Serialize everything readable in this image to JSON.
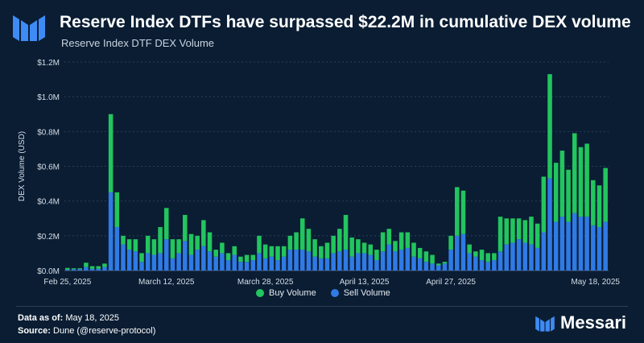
{
  "header": {
    "title": "Reserve Index DTFs have surpassed $22.2M in cumulative DEX volume",
    "subtitle": "Reserve Index DTF DEX Volume"
  },
  "footer": {
    "data_as_of_label": "Data as of:",
    "data_as_of_value": "May 18, 2025",
    "source_label": "Source:",
    "source_value": "Dune (@reserve-protocol)",
    "brand": "Messari"
  },
  "colors": {
    "buy": "#22c55e",
    "sell": "#2f7ae5",
    "background": "#0a1d33",
    "grid": "#2a3f58"
  },
  "chart_data": {
    "type": "bar",
    "stacked": true,
    "ylabel": "DEX Volume (USD)",
    "ylim": [
      0,
      1200000
    ],
    "y_ticks": [
      0,
      200000,
      400000,
      600000,
      800000,
      1000000,
      1200000
    ],
    "y_tick_labels": [
      "$0.0M",
      "$0.2M",
      "$0.4M",
      "$0.6M",
      "$0.8M",
      "$1.0M",
      "$1.2M"
    ],
    "x_tick_labels": [
      {
        "index": 0,
        "label": "Feb 25, 2025"
      },
      {
        "index": 16,
        "label": "March 12, 2025"
      },
      {
        "index": 32,
        "label": "March 28, 2025"
      },
      {
        "index": 48,
        "label": "April 13, 2025"
      },
      {
        "index": 62,
        "label": "April 27, 2025"
      },
      {
        "index": 83,
        "label": "May 18, 2025"
      }
    ],
    "legend_position": "bottom-center",
    "grid": true,
    "series": [
      {
        "name": "Buy Volume",
        "values": [
          10000,
          5000,
          5000,
          25000,
          15000,
          15000,
          20000,
          450000,
          200000,
          50000,
          60000,
          70000,
          50000,
          100000,
          90000,
          150000,
          180000,
          110000,
          80000,
          150000,
          120000,
          80000,
          150000,
          110000,
          40000,
          60000,
          40000,
          50000,
          30000,
          40000,
          30000,
          100000,
          80000,
          60000,
          80000,
          60000,
          80000,
          100000,
          180000,
          130000,
          100000,
          70000,
          90000,
          100000,
          130000,
          200000,
          110000,
          80000,
          60000,
          60000,
          60000,
          110000,
          90000,
          60000,
          100000,
          90000,
          80000,
          60000,
          60000,
          50000,
          10000,
          10000,
          80000,
          280000,
          250000,
          50000,
          30000,
          60000,
          50000,
          40000,
          200000,
          150000,
          140000,
          120000,
          130000,
          160000,
          140000,
          320000,
          600000,
          340000,
          380000,
          300000,
          460000,
          400000,
          420000,
          260000,
          240000,
          310000
        ]
      },
      {
        "name": "Sell Volume",
        "values": [
          5000,
          8000,
          8000,
          20000,
          10000,
          10000,
          20000,
          450000,
          250000,
          150000,
          120000,
          110000,
          50000,
          100000,
          90000,
          100000,
          180000,
          70000,
          100000,
          170000,
          90000,
          120000,
          140000,
          110000,
          80000,
          100000,
          60000,
          90000,
          50000,
          50000,
          60000,
          100000,
          70000,
          80000,
          60000,
          80000,
          120000,
          120000,
          120000,
          110000,
          80000,
          70000,
          70000,
          100000,
          110000,
          120000,
          80000,
          100000,
          100000,
          90000,
          60000,
          110000,
          150000,
          110000,
          120000,
          130000,
          80000,
          70000,
          50000,
          40000,
          30000,
          40000,
          120000,
          200000,
          210000,
          100000,
          80000,
          60000,
          50000,
          60000,
          110000,
          150000,
          160000,
          180000,
          160000,
          150000,
          130000,
          220000,
          530000,
          280000,
          310000,
          280000,
          330000,
          310000,
          310000,
          260000,
          250000,
          280000
        ]
      }
    ]
  }
}
